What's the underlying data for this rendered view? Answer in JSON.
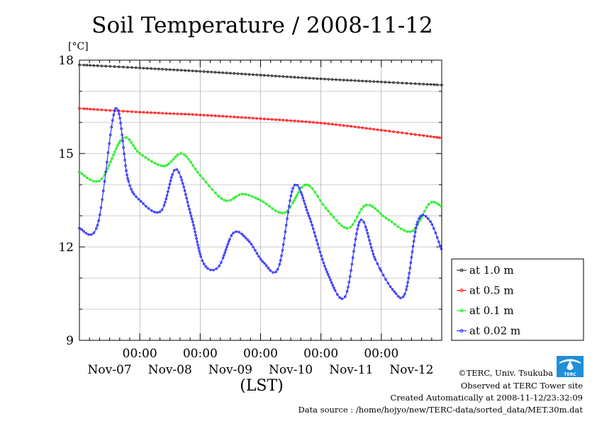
{
  "chart_data": {
    "type": "line",
    "title": "Soil Temperature / 2008-11-12",
    "ylabel": "[°C]",
    "xlabel": "(LST)",
    "ylim": [
      9,
      18
    ],
    "xlim": [
      0,
      6
    ],
    "y_ticks": [
      9,
      12,
      15,
      18
    ],
    "x_tick_times": [
      "00:00",
      "00:00",
      "00:00",
      "00:00",
      "00:00"
    ],
    "x_day_labels": [
      "Nov-07",
      "Nov-08",
      "Nov-09",
      "Nov-10",
      "Nov-11",
      "Nov-12"
    ],
    "grid": true,
    "legend_position": "right",
    "series": [
      {
        "name": "at 1.0 m",
        "color": "#333333",
        "points": [
          [
            0,
            17.85
          ],
          [
            1,
            17.75
          ],
          [
            2,
            17.64
          ],
          [
            3,
            17.52
          ],
          [
            4,
            17.4
          ],
          [
            5,
            17.3
          ],
          [
            6,
            17.2
          ]
        ]
      },
      {
        "name": "at 0.5 m",
        "color": "#ff2020",
        "points": [
          [
            0,
            16.45
          ],
          [
            1,
            16.33
          ],
          [
            2,
            16.24
          ],
          [
            3,
            16.12
          ],
          [
            4,
            15.98
          ],
          [
            5,
            15.75
          ],
          [
            6,
            15.5
          ]
        ]
      },
      {
        "name": "at 0.1 m",
        "color": "#22ee22",
        "points": [
          [
            0,
            14.4
          ],
          [
            0.35,
            14.15
          ],
          [
            0.72,
            15.5
          ],
          [
            1.0,
            15.0
          ],
          [
            1.4,
            14.6
          ],
          [
            1.7,
            15.0
          ],
          [
            2.0,
            14.3
          ],
          [
            2.4,
            13.5
          ],
          [
            2.7,
            13.7
          ],
          [
            3.0,
            13.5
          ],
          [
            3.4,
            13.1
          ],
          [
            3.75,
            14.0
          ],
          [
            4.1,
            13.2
          ],
          [
            4.45,
            12.6
          ],
          [
            4.75,
            13.35
          ],
          [
            5.1,
            12.9
          ],
          [
            5.5,
            12.5
          ],
          [
            5.8,
            13.4
          ],
          [
            6.0,
            13.3
          ]
        ]
      },
      {
        "name": "at 0.02 m",
        "color": "#3333ff",
        "points": [
          [
            0,
            12.6
          ],
          [
            0.3,
            12.7
          ],
          [
            0.6,
            16.45
          ],
          [
            0.8,
            14.2
          ],
          [
            1.0,
            13.5
          ],
          [
            1.35,
            13.15
          ],
          [
            1.6,
            14.5
          ],
          [
            1.85,
            13.0
          ],
          [
            2.05,
            11.5
          ],
          [
            2.3,
            11.35
          ],
          [
            2.55,
            12.45
          ],
          [
            2.8,
            12.2
          ],
          [
            3.05,
            11.5
          ],
          [
            3.3,
            11.35
          ],
          [
            3.55,
            13.95
          ],
          [
            3.8,
            13.0
          ],
          [
            4.1,
            11.2
          ],
          [
            4.4,
            10.4
          ],
          [
            4.65,
            12.85
          ],
          [
            4.9,
            11.6
          ],
          [
            5.2,
            10.6
          ],
          [
            5.4,
            10.55
          ],
          [
            5.6,
            12.8
          ],
          [
            5.8,
            12.85
          ],
          [
            6.0,
            11.9
          ]
        ]
      }
    ]
  },
  "credits": {
    "copyright": "©TERC, Univ. Tsukuba",
    "observed": "Observed at TERC Tower site",
    "created": "Created Automatically at 2008-11-12/23:32:09",
    "source": "Data source : /home/hojyo/new/TERC-data/sorted_data/MET.30m.dat"
  },
  "logo": {
    "text": "TERC",
    "color": "#1f8fd8"
  }
}
